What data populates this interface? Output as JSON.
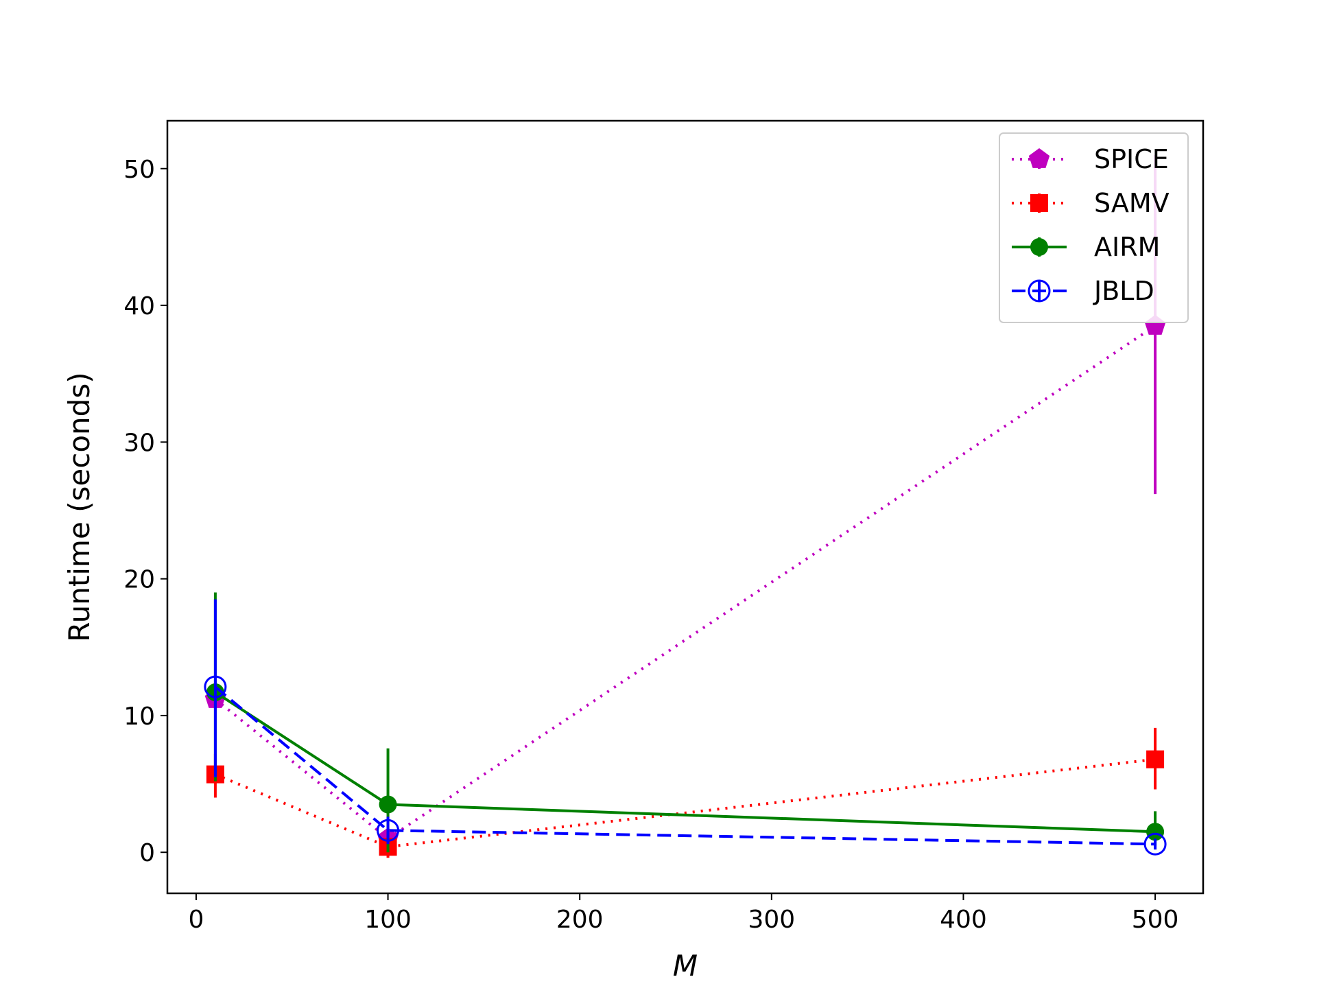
{
  "chart_data": {
    "type": "line",
    "title": "",
    "xlabel": "M",
    "ylabel": "Runtime (seconds)",
    "xlim": [
      -15,
      525
    ],
    "ylim": [
      -3,
      53.5
    ],
    "x_ticks": [
      0,
      100,
      200,
      300,
      400,
      500
    ],
    "y_ticks": [
      0,
      10,
      20,
      30,
      40,
      50
    ],
    "grid": false,
    "legend_position": "top-right",
    "x": [
      10,
      100,
      500
    ],
    "series": [
      {
        "name": "SPICE",
        "color": "#bf00bf",
        "line_style": "dotted",
        "marker": "pentagon",
        "values": [
          11.2,
          1.0,
          38.5
        ],
        "err_low": [
          10.5,
          0.9,
          26.2
        ],
        "err_high": [
          11.8,
          1.1,
          51.0
        ]
      },
      {
        "name": "SAMV",
        "color": "#ff0000",
        "line_style": "dotted",
        "marker": "square",
        "values": [
          5.7,
          0.4,
          6.8
        ],
        "err_low": [
          4.0,
          -0.4,
          4.6
        ],
        "err_high": [
          7.2,
          0.9,
          9.1
        ]
      },
      {
        "name": "AIRM",
        "color": "#008000",
        "line_style": "solid",
        "marker": "circle",
        "values": [
          11.7,
          3.5,
          1.5
        ],
        "err_low": [
          5.2,
          0.0,
          0.5
        ],
        "err_high": [
          19.0,
          7.6,
          3.0
        ]
      },
      {
        "name": "JBLD",
        "color": "#0000ff",
        "line_style": "dashed",
        "marker": "open-circle",
        "values": [
          12.1,
          1.6,
          0.6
        ],
        "err_low": [
          5.5,
          0.6,
          0.2
        ],
        "err_high": [
          18.5,
          2.6,
          1.0
        ]
      }
    ]
  }
}
